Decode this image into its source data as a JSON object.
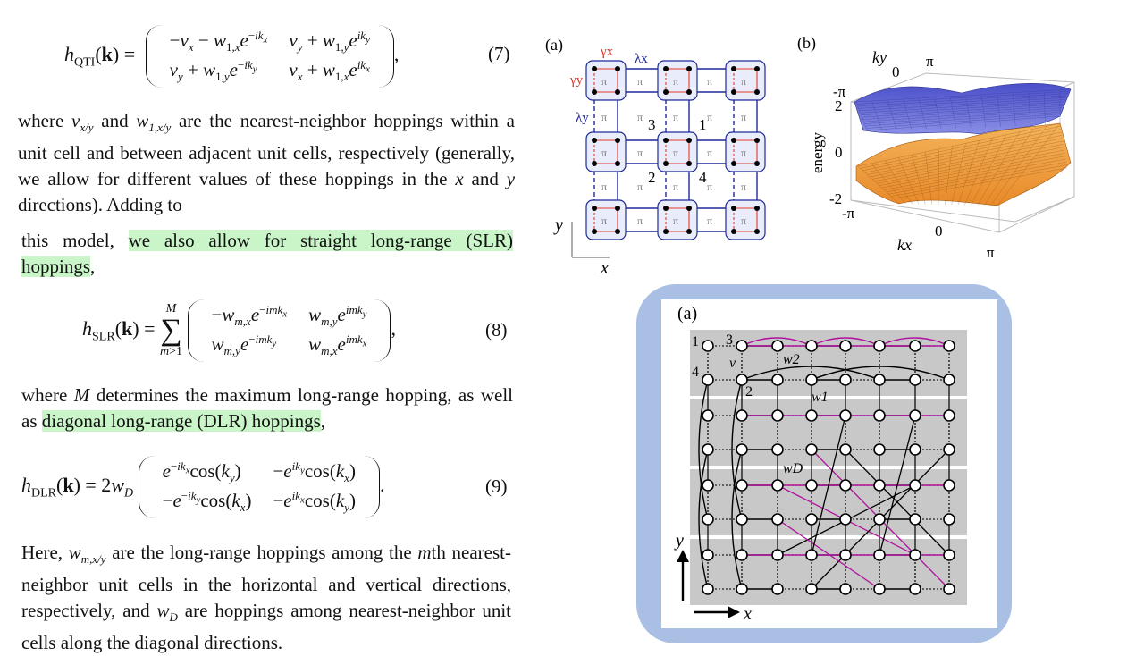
{
  "eq7": {
    "lhs": "h",
    "lhs_sub": "QTI",
    "arg": "(k) =",
    "r1c1": "−v",
    "r1c1b": " − w",
    "r1c2": "v",
    "r1c2b": " + w",
    "r2c1": "v",
    "r2c1b": " + w",
    "r2c2": "v",
    "r2c2b": " + w",
    "number": "(7)"
  },
  "para1": "where v and w are the nearest-neighbor hoppings within a unit cell and between adjacent unit cells, respectively (generally, we allow for different values of these hoppings in the x and y directions). Adding to",
  "para1_parts": {
    "a": "where ",
    "b": " and ",
    "c": " are the nearest-neighbor hoppings within a unit cell and between adjacent unit cells, respectively (generally, we allow for different values of these hoppings in the ",
    "x": "x",
    "d": " and ",
    "y": "y",
    "e": " directions). Adding to"
  },
  "para2": {
    "pre": "this model, ",
    "hl": "we also allow for straight long-range (SLR) hoppings",
    "post": ","
  },
  "eq8": {
    "lhs": "h",
    "lhs_sub": "SLR",
    "arg": "(k) =",
    "sum_top": "M",
    "sum_bot": "m>1",
    "number": "(8)"
  },
  "para3": {
    "pre": "where ",
    "M": "M",
    "mid": " determines the maximum long-range hopping, as well as ",
    "hl": "diagonal long-range (DLR) hoppings",
    "post": ","
  },
  "eq9": {
    "lhs": "h",
    "lhs_sub": "DLR",
    "arg": "(k) = 2w",
    "wsub": "D",
    "number": "(9)"
  },
  "para4": {
    "a": "Here, ",
    "b": " are the long-range hoppings among the ",
    "c": "th nearest-neighbor unit cells in the horizontal and vertical directions, respectively, and ",
    "d": " are hoppings among nearest-neighbor unit cells along the diagonal directions."
  },
  "fig_top_a": {
    "label": "(a)",
    "gx": "γx",
    "gy": "γy",
    "lx": "λx",
    "ly": "λy",
    "pi": "π",
    "n1": "1",
    "n2": "2",
    "n3": "3",
    "n4": "4",
    "axis_y": "y",
    "axis_x": "x"
  },
  "fig_top_b": {
    "label": "(b)",
    "ky": "ky",
    "kx": "kx",
    "energy": "energy",
    "ticks_e": [
      "2",
      "0",
      "-2"
    ],
    "k0": "0",
    "kpi": "π",
    "kmpi": "-π"
  },
  "fig_bottom_a": {
    "label": "(a)",
    "n1": "1",
    "n2": "2",
    "n3": "3",
    "n4": "4",
    "v": "v",
    "w1": "w1",
    "w2": "w2",
    "wD": "wD",
    "axis_y": "y",
    "axis_x": "x"
  },
  "colors": {
    "highlight": "#c9f5c9",
    "lattice_blue": "#1f2a9a",
    "pi_red": "#e03a2a",
    "magenta": "#b0129e",
    "card_blue": "#a9bfe4"
  }
}
